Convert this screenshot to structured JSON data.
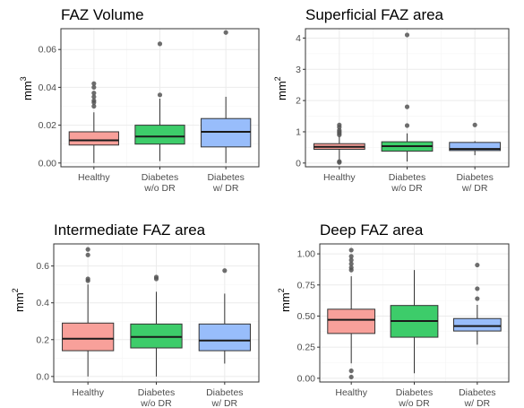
{
  "colors": {
    "Healthy": "#f8a09a",
    "Diabetes w/o DR": "#3dcc6a",
    "Diabetes w/ DR": "#98bdfb"
  },
  "chart_data": [
    {
      "type": "box",
      "title": "FAZ Volume",
      "ylabel": "mm",
      "ylabel_sup": "3",
      "ylim": [
        -0.002,
        0.071
      ],
      "yticks": [
        0.0,
        0.02,
        0.04,
        0.06
      ],
      "ytick_labels": [
        "0.00",
        "0.02",
        "0.04",
        "0.06"
      ],
      "categories": [
        "Healthy",
        "Diabetes w/o DR",
        "Diabetes w/ DR"
      ],
      "category_lines": [
        [
          "Healthy"
        ],
        [
          "Diabetes",
          "w/o DR"
        ],
        [
          "Diabetes",
          "w/ DR"
        ]
      ],
      "boxes": [
        {
          "whisker_low": 0.0,
          "q1": 0.0095,
          "median": 0.012,
          "q3": 0.0165,
          "whisker_high": 0.0268,
          "outliers": [
            0.03,
            0.032,
            0.033,
            0.035,
            0.037,
            0.04,
            0.042
          ]
        },
        {
          "whisker_low": 0.001,
          "q1": 0.01,
          "median": 0.014,
          "q3": 0.02,
          "whisker_high": 0.034,
          "outliers": [
            0.036,
            0.063
          ]
        },
        {
          "whisker_low": 0.0,
          "q1": 0.0085,
          "median": 0.0165,
          "q3": 0.0235,
          "whisker_high": 0.035,
          "outliers": [
            0.069
          ]
        }
      ]
    },
    {
      "type": "box",
      "title": "Superficial FAZ area",
      "ylabel": "mm",
      "ylabel_sup": "2",
      "ylim": [
        -0.12,
        4.3
      ],
      "yticks": [
        0,
        1,
        2,
        3,
        4
      ],
      "ytick_labels": [
        "0",
        "1",
        "2",
        "3",
        "4"
      ],
      "categories": [
        "Healthy",
        "Diabetes w/o DR",
        "Diabetes w/ DR"
      ],
      "category_lines": [
        [
          "Healthy"
        ],
        [
          "Diabetes",
          "w/o DR"
        ],
        [
          "Diabetes",
          "w/ DR"
        ]
      ],
      "boxes": [
        {
          "whisker_low": 0.1,
          "q1": 0.44,
          "median": 0.52,
          "q3": 0.62,
          "whisker_high": 0.86,
          "outliers": [
            0.9,
            0.95,
            1.0,
            1.05,
            1.15,
            1.22,
            0.05,
            0.02
          ]
        },
        {
          "whisker_low": 0.05,
          "q1": 0.38,
          "median": 0.54,
          "q3": 0.68,
          "whisker_high": 0.95,
          "outliers": [
            1.2,
            1.8,
            4.1
          ]
        },
        {
          "whisker_low": 0.25,
          "q1": 0.4,
          "median": 0.45,
          "q3": 0.66,
          "whisker_high": 0.7,
          "outliers": [
            1.22
          ]
        }
      ]
    },
    {
      "type": "box",
      "title": "Intermediate FAZ area",
      "ylabel": "mm",
      "ylabel_sup": "2",
      "ylim": [
        -0.03,
        0.72
      ],
      "yticks": [
        0.0,
        0.2,
        0.4,
        0.6
      ],
      "ytick_labels": [
        "0.0",
        "0.2",
        "0.4",
        "0.6"
      ],
      "categories": [
        "Healthy",
        "Diabetes w/o DR",
        "Diabetes w/ DR"
      ],
      "category_lines": [
        [
          "Healthy"
        ],
        [
          "Diabetes",
          "w/o DR"
        ],
        [
          "Diabetes",
          "w/ DR"
        ]
      ],
      "boxes": [
        {
          "whisker_low": 0.0,
          "q1": 0.14,
          "median": 0.205,
          "q3": 0.29,
          "whisker_high": 0.5,
          "outliers": [
            0.52,
            0.53,
            0.66,
            0.69
          ]
        },
        {
          "whisker_low": 0.0,
          "q1": 0.155,
          "median": 0.215,
          "q3": 0.285,
          "whisker_high": 0.46,
          "outliers": [
            0.53,
            0.54
          ]
        },
        {
          "whisker_low": 0.07,
          "q1": 0.14,
          "median": 0.195,
          "q3": 0.285,
          "whisker_high": 0.45,
          "outliers": [
            0.575
          ]
        }
      ]
    },
    {
      "type": "box",
      "title": "Deep FAZ area",
      "ylabel": "mm",
      "ylabel_sup": "2",
      "ylim": [
        -0.03,
        1.08
      ],
      "yticks": [
        0.0,
        0.25,
        0.5,
        0.75,
        1.0
      ],
      "ytick_labels": [
        "0.00",
        "0.25",
        "0.50",
        "0.75",
        "1.00"
      ],
      "categories": [
        "Healthy",
        "Diabetes w/o DR",
        "Diabetes w/ DR"
      ],
      "category_lines": [
        [
          "Healthy"
        ],
        [
          "Diabetes",
          "w/o DR"
        ],
        [
          "Diabetes",
          "w/ DR"
        ]
      ],
      "boxes": [
        {
          "whisker_low": 0.12,
          "q1": 0.36,
          "median": 0.47,
          "q3": 0.555,
          "whisker_high": 0.82,
          "outliers": [
            0.87,
            0.89,
            0.92,
            0.95,
            0.98,
            1.03,
            0.06,
            0.01
          ]
        },
        {
          "whisker_low": 0.04,
          "q1": 0.33,
          "median": 0.46,
          "q3": 0.585,
          "whisker_high": 0.87,
          "outliers": []
        },
        {
          "whisker_low": 0.27,
          "q1": 0.38,
          "median": 0.42,
          "q3": 0.48,
          "whisker_high": 0.59,
          "outliers": [
            0.64,
            0.72,
            0.91
          ]
        }
      ]
    }
  ]
}
